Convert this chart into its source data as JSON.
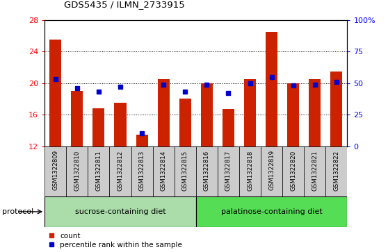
{
  "title": "GDS5435 / ILMN_2733915",
  "samples": [
    "GSM1322809",
    "GSM1322810",
    "GSM1322811",
    "GSM1322812",
    "GSM1322813",
    "GSM1322814",
    "GSM1322815",
    "GSM1322816",
    "GSM1322817",
    "GSM1322818",
    "GSM1322819",
    "GSM1322820",
    "GSM1322821",
    "GSM1322822"
  ],
  "count_values": [
    25.5,
    19.0,
    16.8,
    17.5,
    13.5,
    20.5,
    18.0,
    20.0,
    16.7,
    20.5,
    26.5,
    20.0,
    20.5,
    21.5
  ],
  "percentile_values": [
    53,
    46,
    43,
    47,
    10,
    49,
    43,
    49,
    42,
    50,
    55,
    48,
    49,
    51
  ],
  "ylim_left": [
    12,
    28
  ],
  "ylim_right": [
    0,
    100
  ],
  "yticks_left": [
    12,
    16,
    20,
    24,
    28
  ],
  "yticks_right": [
    0,
    25,
    50,
    75,
    100
  ],
  "ytick_labels_right": [
    "0",
    "25",
    "50",
    "75",
    "100%"
  ],
  "bar_color": "#cc2200",
  "marker_color": "#0000cc",
  "bar_bottom": 12,
  "group_label_1": "sucrose-containing diet",
  "group_label_2": "palatinose-containing diet",
  "group_color_1": "#aaddaa",
  "group_color_2": "#55dd55",
  "label_bg_color": "#cccccc",
  "protocol_label": "protocol",
  "legend_count_label": "count",
  "legend_percentile_label": "percentile rank within the sample",
  "group1_count": 7,
  "group2_count": 7
}
